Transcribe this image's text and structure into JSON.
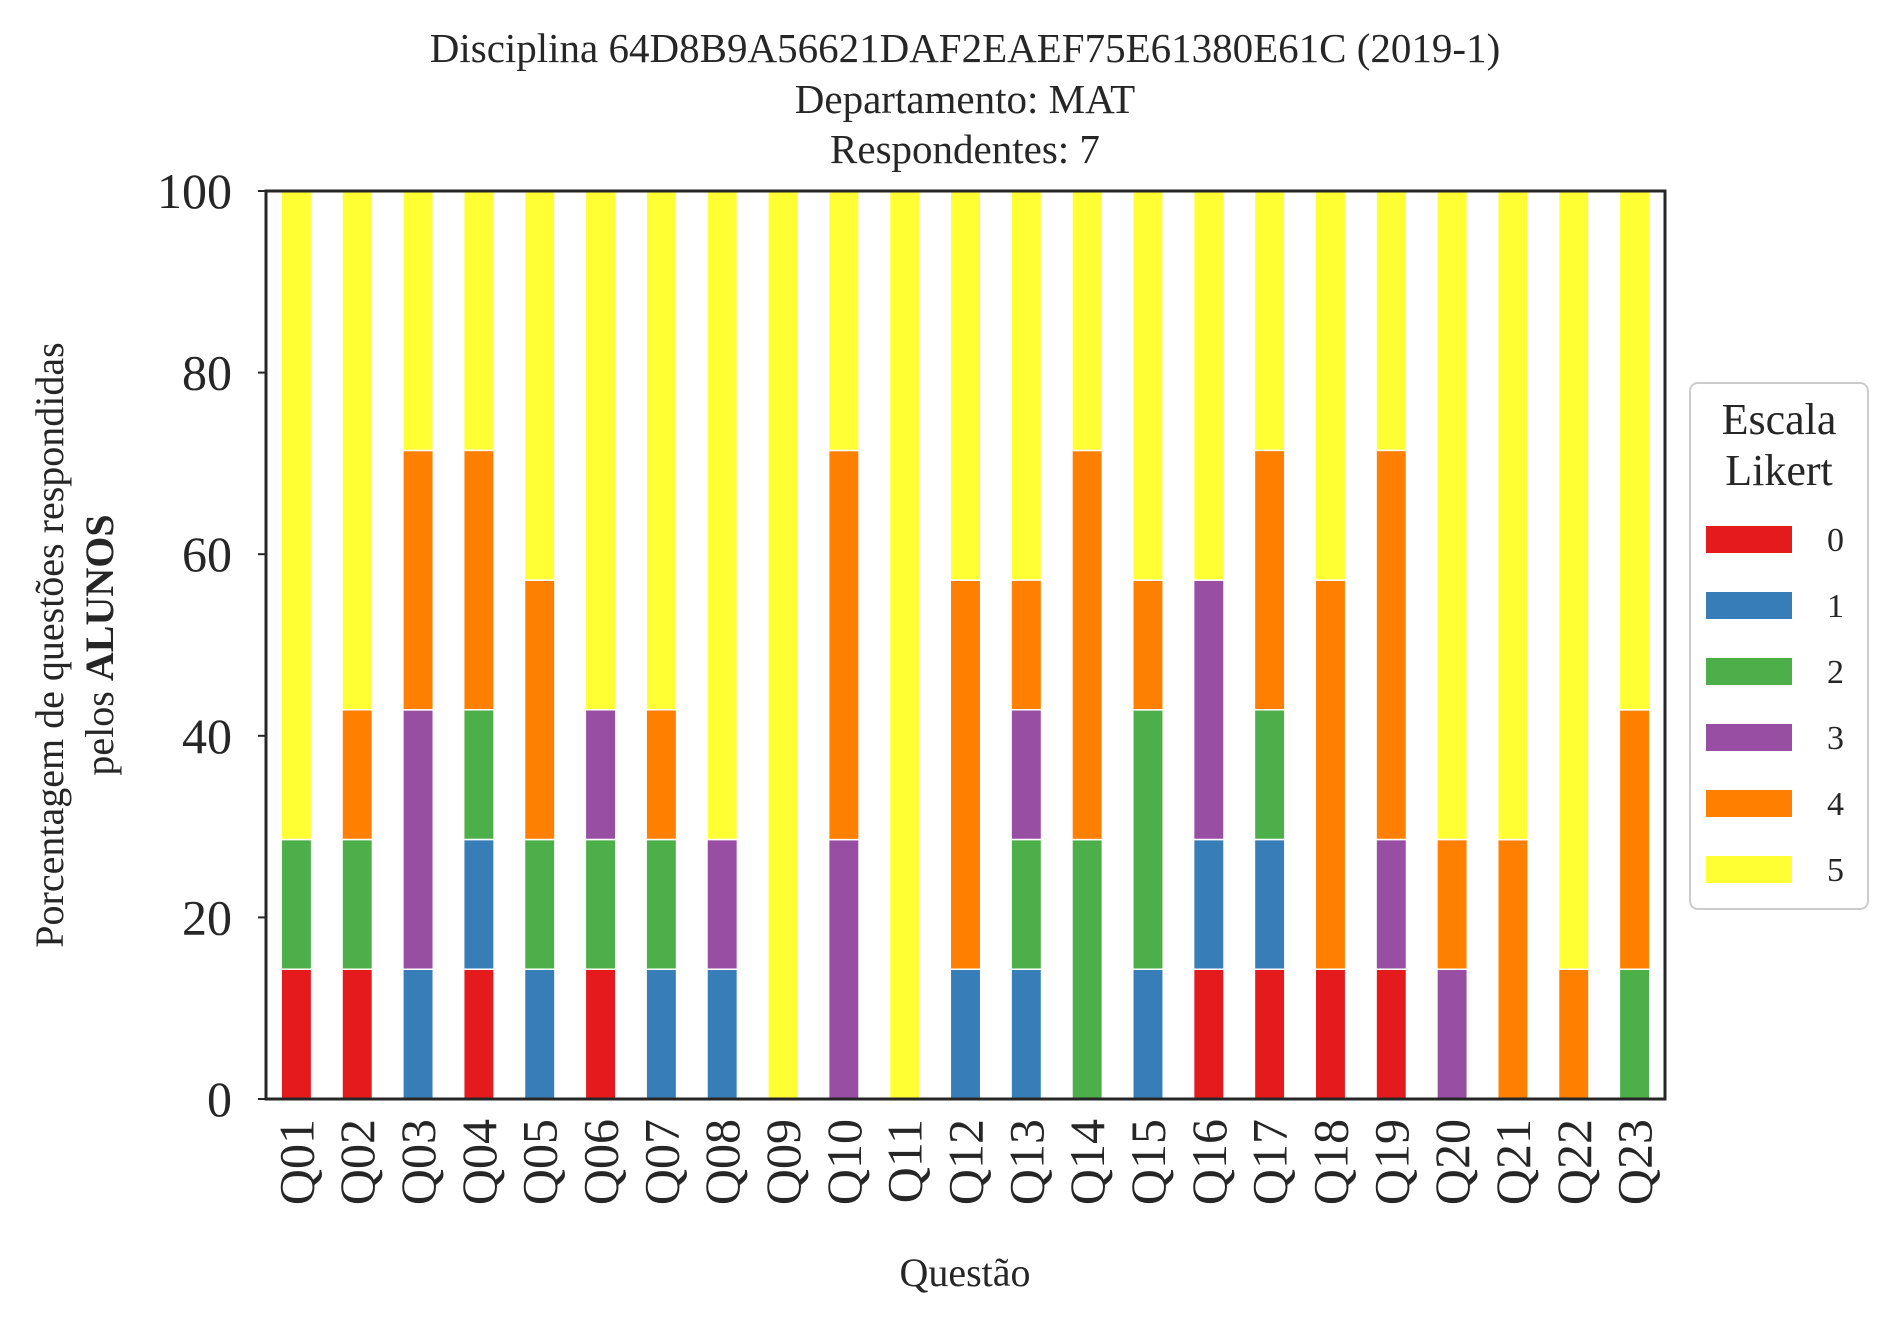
{
  "chart_data": {
    "type": "bar",
    "stacked": true,
    "title_lines": [
      "Disciplina 64D8B9A56621DAF2EAEF75E61380E61C (2019-1)",
      "Departamento: MAT",
      "Respondentes: 7"
    ],
    "xlabel": "Questão",
    "ylabel_line1": "Porcentagem de questões respondidas",
    "ylabel_line2_prefix": "pelos ",
    "ylabel_line2_bold": "ALUNOS",
    "ylim": [
      0,
      100
    ],
    "yticks": [
      "0",
      "20",
      "40",
      "60",
      "80",
      "100"
    ],
    "grid": false,
    "legend_placement": "right",
    "legend_title_lines": [
      "Escala",
      "Likert"
    ],
    "categories": [
      "Q01",
      "Q02",
      "Q03",
      "Q04",
      "Q05",
      "Q06",
      "Q07",
      "Q08",
      "Q09",
      "Q10",
      "Q11",
      "Q12",
      "Q13",
      "Q14",
      "Q15",
      "Q16",
      "Q17",
      "Q18",
      "Q19",
      "Q20",
      "Q21",
      "Q22",
      "Q23"
    ],
    "series": [
      {
        "name": "0",
        "color": "#e41a1c",
        "values": [
          14.29,
          14.29,
          0,
          14.29,
          0,
          14.29,
          0,
          0,
          0,
          0,
          0,
          0,
          0,
          0,
          0,
          14.29,
          14.29,
          14.29,
          14.29,
          0,
          0,
          0,
          0
        ]
      },
      {
        "name": "1",
        "color": "#377eb8",
        "values": [
          0,
          0,
          14.29,
          14.29,
          14.29,
          0,
          14.29,
          14.29,
          0,
          0,
          0,
          14.29,
          14.29,
          0,
          14.29,
          14.29,
          14.29,
          0,
          0,
          0,
          0,
          0,
          0
        ]
      },
      {
        "name": "2",
        "color": "#4daf4a",
        "values": [
          14.29,
          14.29,
          0,
          14.29,
          14.29,
          14.29,
          14.29,
          0,
          0,
          0,
          0,
          0,
          14.29,
          28.57,
          28.57,
          0,
          14.29,
          0,
          0,
          0,
          0,
          0,
          14.29
        ]
      },
      {
        "name": "3",
        "color": "#984ea3",
        "values": [
          0,
          0,
          28.57,
          0,
          0,
          14.29,
          0,
          14.29,
          0,
          28.57,
          0,
          0,
          14.29,
          0,
          0,
          28.57,
          0,
          0,
          14.29,
          14.29,
          0,
          0,
          0
        ]
      },
      {
        "name": "4",
        "color": "#ff7f00",
        "values": [
          0,
          14.29,
          28.57,
          28.57,
          28.57,
          0,
          14.29,
          0,
          0,
          42.86,
          0,
          42.86,
          14.29,
          42.86,
          14.29,
          0,
          28.57,
          42.86,
          42.86,
          14.29,
          28.57,
          14.29,
          28.57
        ]
      },
      {
        "name": "5",
        "color": "#ffff33",
        "values": [
          71.43,
          57.14,
          28.57,
          28.57,
          42.86,
          57.14,
          57.14,
          71.43,
          100,
          28.57,
          100,
          42.86,
          42.86,
          28.57,
          42.86,
          42.86,
          28.57,
          42.86,
          28.57,
          71.43,
          71.43,
          85.71,
          57.14
        ]
      }
    ]
  }
}
